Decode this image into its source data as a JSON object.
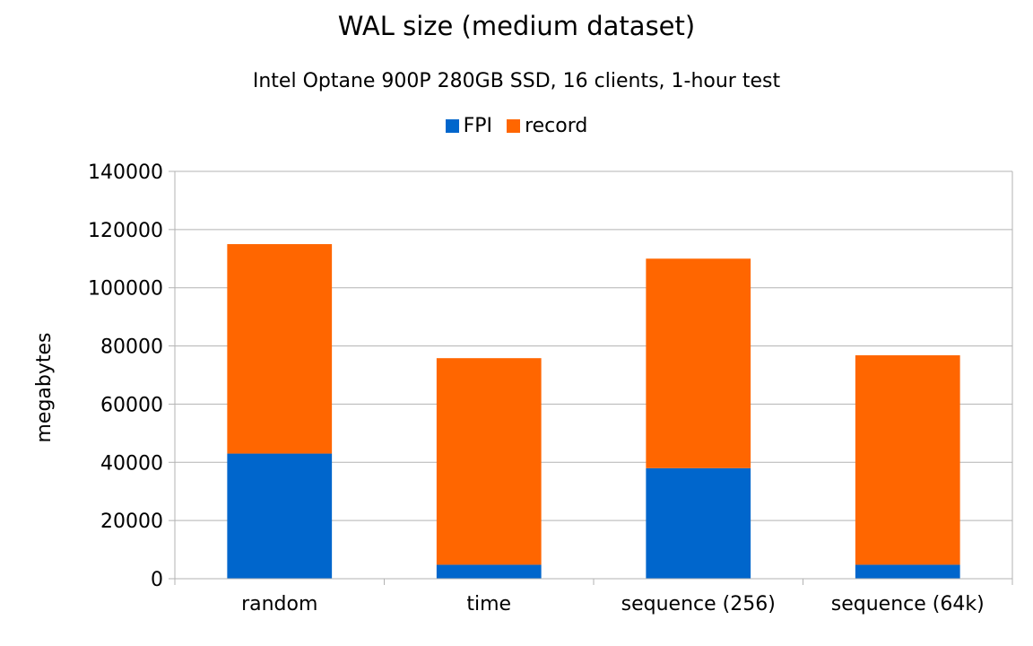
{
  "chart_data": {
    "type": "bar",
    "stacked": true,
    "title": "WAL size (medium dataset)",
    "subtitle": "Intel Optane 900P 280GB SSD, 16 clients, 1-hour test",
    "xlabel": "",
    "ylabel": "megabytes",
    "ylim": [
      0,
      140000
    ],
    "yticks": [
      "0",
      "20000",
      "40000",
      "60000",
      "80000",
      "100000",
      "120000",
      "140000"
    ],
    "categories": [
      "random",
      "time",
      "sequence (256)",
      "sequence (64k)"
    ],
    "series": [
      {
        "name": "FPI",
        "color": "#0066cc",
        "values": [
          43000,
          4800,
          38000,
          4800
        ]
      },
      {
        "name": "record",
        "color": "#ff6600",
        "values": [
          72000,
          71000,
          72000,
          72000
        ]
      }
    ],
    "grid": true,
    "legend_position": "top"
  }
}
